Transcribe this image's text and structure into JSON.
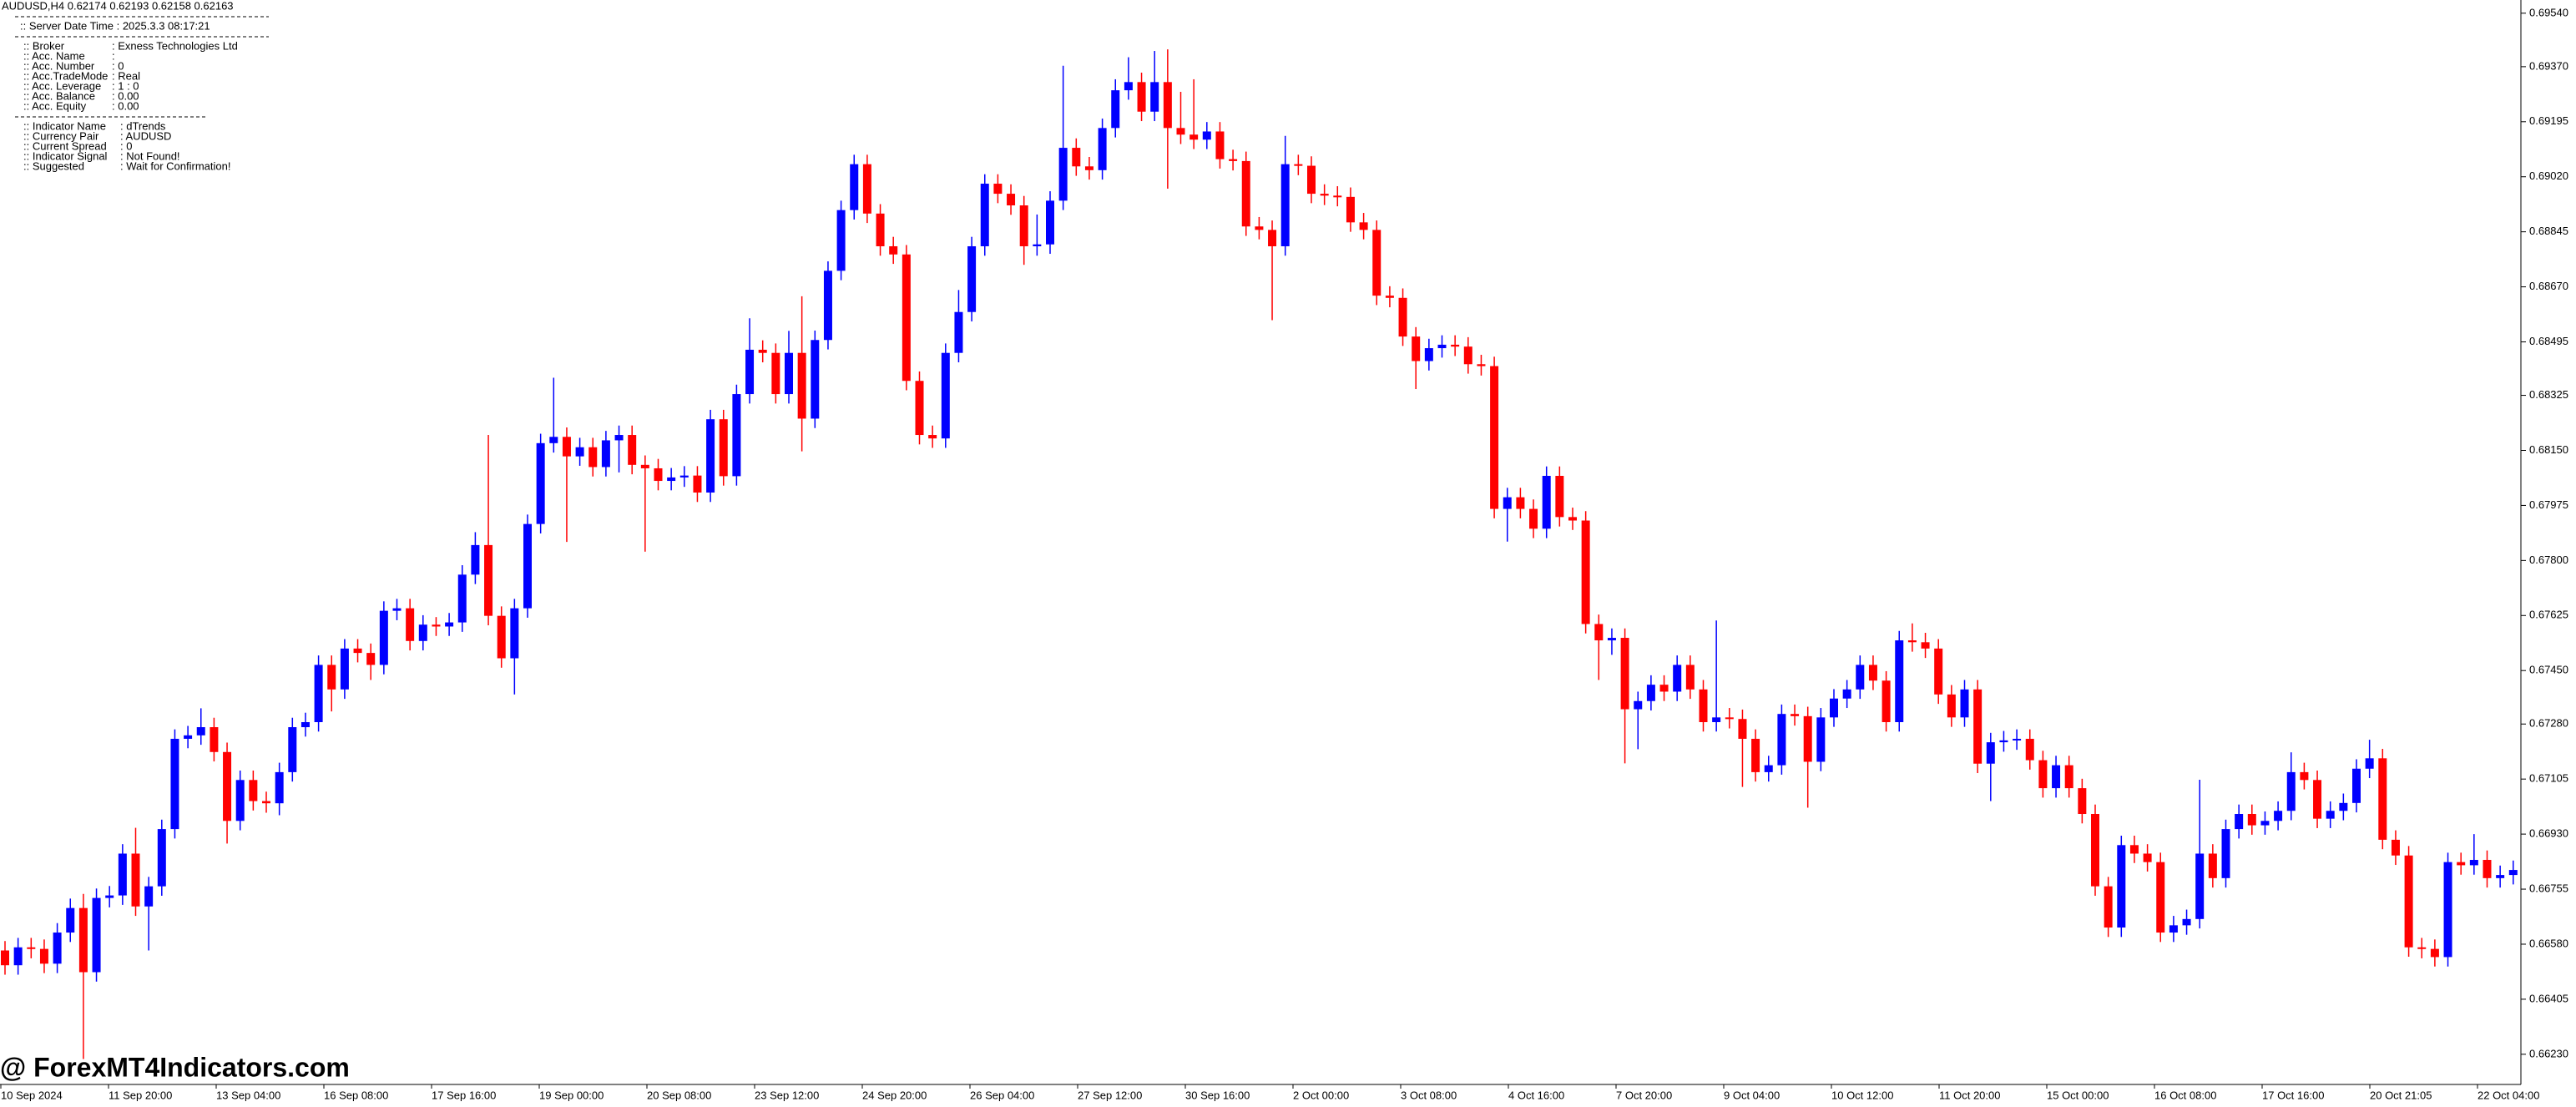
{
  "header": {
    "symbol_line": "AUDUSD,H4  0.62174 0.62193 0.62158 0.62163",
    "server_time": ":: Server Date Time : 2025.3.3   08:17:21"
  },
  "info_panel": [
    {
      "label": ":: Broker",
      "value": ": Exness Technologies Ltd"
    },
    {
      "label": ":: Acc. Name",
      "value": ":"
    },
    {
      "label": ":: Acc. Number",
      "value": ": 0"
    },
    {
      "label": ":: Acc.TradeMode",
      "value": ": Real"
    },
    {
      "label": ":: Acc. Leverage",
      "value": ": 1 : 0"
    },
    {
      "label": ":: Acc. Balance",
      "value": ": 0.00"
    },
    {
      "label": ":: Acc. Equity",
      "value": ": 0.00"
    }
  ],
  "indicator_panel": [
    {
      "label": ":: Indicator Name",
      "value": ": dTrends"
    },
    {
      "label": ":: Currency Pair",
      "value": ": AUDUSD"
    },
    {
      "label": ":: Current Spread",
      "value": ": 0"
    },
    {
      "label": ":: Indicator Signal",
      "value": ": Not Found!"
    },
    {
      "label": ":: Suggested",
      "value": ": Wait for Confirmation!"
    }
  ],
  "watermark": "@ ForexMT4Indicators.com",
  "chart_data": {
    "type": "candlestick",
    "up_color": "#0000ff",
    "down_color": "#ff0000",
    "ylim": [
      0.66134,
      0.69582
    ],
    "yticks": [
      {
        "value": 0.6954,
        "label": "0.69540"
      },
      {
        "value": 0.6937,
        "label": "0.69370"
      },
      0.69195,
      {
        "value": 0.6902,
        "label": "0.69020"
      },
      0.68845,
      {
        "value": 0.6867,
        "label": "0.68670"
      },
      0.68495,
      0.68325,
      {
        "value": 0.6815,
        "label": "0.68150"
      },
      0.67975,
      {
        "value": 0.678,
        "label": "0.67800"
      },
      0.67625,
      {
        "value": 0.6745,
        "label": "0.67450"
      },
      {
        "value": 0.6728,
        "label": "0.67280"
      },
      0.67105,
      {
        "value": 0.6693,
        "label": "0.66930"
      },
      0.66755,
      {
        "value": 0.6658,
        "label": "0.66580"
      },
      0.66405,
      {
        "value": 0.6623,
        "label": "0.66230"
      }
    ],
    "x_labels": [
      "10 Sep 2024",
      "11 Sep 20:00",
      "13 Sep 04:00",
      "16 Sep 08:00",
      "17 Sep 16:00",
      "19 Sep 00:00",
      "20 Sep 08:00",
      "23 Sep 12:00",
      "24 Sep 20:00",
      "26 Sep 04:00",
      "27 Sep 12:00",
      "30 Sep 16:00",
      "2 Oct 00:00",
      "3 Oct 08:00",
      "4 Oct 16:00",
      "7 Oct 20:00",
      "9 Oct 04:00",
      "10 Oct 12:00",
      "11 Oct 20:00",
      "15 Oct 00:00",
      "16 Oct 08:00",
      "17 Oct 16:00",
      "20 Oct 21:05",
      "22 Oct 04:00"
    ],
    "candles": [
      [
        0.6656,
        0.6659,
        0.66483,
        0.66513
      ],
      [
        0.66513,
        0.666,
        0.66483,
        0.6657
      ],
      [
        0.6657,
        0.666,
        0.66535,
        0.66565
      ],
      [
        0.66565,
        0.66595,
        0.66488,
        0.66518
      ],
      [
        0.66518,
        0.66647,
        0.66488,
        0.66617
      ],
      [
        0.66617,
        0.66725,
        0.66587,
        0.66695
      ],
      [
        0.66695,
        0.6674,
        0.66215,
        0.66491
      ],
      [
        0.66491,
        0.66757,
        0.66461,
        0.66727
      ],
      [
        0.66727,
        0.66765,
        0.66697,
        0.66735
      ],
      [
        0.66735,
        0.66898,
        0.66705,
        0.66868
      ],
      [
        0.66868,
        0.6695,
        0.6667,
        0.667
      ],
      [
        0.667,
        0.66794,
        0.6656,
        0.66764
      ],
      [
        0.66764,
        0.66976,
        0.66734,
        0.66946
      ],
      [
        0.66946,
        0.67263,
        0.66916,
        0.67233
      ],
      [
        0.67233,
        0.67274,
        0.67203,
        0.67244
      ],
      [
        0.67244,
        0.6733,
        0.67214,
        0.6727
      ],
      [
        0.6727,
        0.673,
        0.67161,
        0.67191
      ],
      [
        0.67191,
        0.67221,
        0.669,
        0.66972
      ],
      [
        0.66972,
        0.67132,
        0.66942,
        0.67102
      ],
      [
        0.67102,
        0.67132,
        0.67005,
        0.67035
      ],
      [
        0.67035,
        0.67065,
        0.66998,
        0.67028
      ],
      [
        0.67028,
        0.67157,
        0.6699,
        0.67127
      ],
      [
        0.67127,
        0.673,
        0.67097,
        0.6727
      ],
      [
        0.6727,
        0.67316,
        0.6724,
        0.67286
      ],
      [
        0.67286,
        0.67498,
        0.67256,
        0.67468
      ],
      [
        0.67468,
        0.67498,
        0.6732,
        0.6739
      ],
      [
        0.6739,
        0.6755,
        0.6736,
        0.6752
      ],
      [
        0.6752,
        0.6755,
        0.67476,
        0.67506
      ],
      [
        0.67506,
        0.67536,
        0.6742,
        0.67468
      ],
      [
        0.67468,
        0.6767,
        0.67438,
        0.6764
      ],
      [
        0.6764,
        0.67678,
        0.6761,
        0.67648
      ],
      [
        0.67648,
        0.67678,
        0.67514,
        0.67544
      ],
      [
        0.67544,
        0.67626,
        0.67514,
        0.67596
      ],
      [
        0.67596,
        0.6762,
        0.6756,
        0.6759
      ],
      [
        0.6759,
        0.67633,
        0.6756,
        0.67603
      ],
      [
        0.67603,
        0.67785,
        0.67573,
        0.67755
      ],
      [
        0.67755,
        0.6789,
        0.67725,
        0.67849
      ],
      [
        0.67849,
        0.68199,
        0.67594,
        0.67624
      ],
      [
        0.67624,
        0.67654,
        0.67459,
        0.67489
      ],
      [
        0.67489,
        0.67678,
        0.67374,
        0.67648
      ],
      [
        0.67648,
        0.67946,
        0.67618,
        0.67916
      ],
      [
        0.67916,
        0.68203,
        0.67886,
        0.68173
      ],
      [
        0.68173,
        0.68381,
        0.68143,
        0.68193
      ],
      [
        0.68193,
        0.68223,
        0.67859,
        0.68131
      ],
      [
        0.68131,
        0.6819,
        0.68101,
        0.6816
      ],
      [
        0.6816,
        0.6819,
        0.68067,
        0.68097
      ],
      [
        0.68097,
        0.68212,
        0.68067,
        0.68182
      ],
      [
        0.68182,
        0.68229,
        0.6808,
        0.68199
      ],
      [
        0.68199,
        0.68229,
        0.68074,
        0.68104
      ],
      [
        0.68104,
        0.68134,
        0.67828,
        0.68093
      ],
      [
        0.68093,
        0.68123,
        0.68023,
        0.68053
      ],
      [
        0.68053,
        0.68094,
        0.68023,
        0.68064
      ],
      [
        0.68064,
        0.681,
        0.68034,
        0.6807
      ],
      [
        0.6807,
        0.681,
        0.67986,
        0.68016
      ],
      [
        0.68016,
        0.68279,
        0.67986,
        0.68249
      ],
      [
        0.68249,
        0.68279,
        0.68038,
        0.68068
      ],
      [
        0.68068,
        0.68359,
        0.68038,
        0.68329
      ],
      [
        0.68329,
        0.6857,
        0.68299,
        0.6847
      ],
      [
        0.6847,
        0.685,
        0.6843,
        0.6846
      ],
      [
        0.6846,
        0.6849,
        0.68299,
        0.68329
      ],
      [
        0.68329,
        0.6853,
        0.68299,
        0.6846
      ],
      [
        0.6846,
        0.6864,
        0.68147,
        0.68251
      ],
      [
        0.68251,
        0.68531,
        0.68221,
        0.68501
      ],
      [
        0.68501,
        0.68751,
        0.68471,
        0.68721
      ],
      [
        0.68721,
        0.68944,
        0.68691,
        0.68914
      ],
      [
        0.68914,
        0.6909,
        0.68884,
        0.6906
      ],
      [
        0.6906,
        0.6909,
        0.68873,
        0.68903
      ],
      [
        0.68903,
        0.68933,
        0.68769,
        0.68799
      ],
      [
        0.68799,
        0.68829,
        0.68743,
        0.68773
      ],
      [
        0.68773,
        0.68803,
        0.68341,
        0.68371
      ],
      [
        0.68371,
        0.68401,
        0.68169,
        0.68199
      ],
      [
        0.68199,
        0.68229,
        0.68158,
        0.68188
      ],
      [
        0.68188,
        0.6849,
        0.68158,
        0.6846
      ],
      [
        0.6846,
        0.6866,
        0.6843,
        0.6859
      ],
      [
        0.6859,
        0.68829,
        0.6856,
        0.68799
      ],
      [
        0.68799,
        0.69028,
        0.68769,
        0.68998
      ],
      [
        0.68998,
        0.69028,
        0.68936,
        0.68966
      ],
      [
        0.68966,
        0.68996,
        0.68899,
        0.68929
      ],
      [
        0.68929,
        0.68959,
        0.6874,
        0.68799
      ],
      [
        0.68799,
        0.689,
        0.68769,
        0.68805
      ],
      [
        0.68805,
        0.68974,
        0.68775,
        0.68944
      ],
      [
        0.68944,
        0.69373,
        0.68914,
        0.69112
      ],
      [
        0.69112,
        0.69142,
        0.69023,
        0.69053
      ],
      [
        0.69053,
        0.69083,
        0.69011,
        0.69041
      ],
      [
        0.69041,
        0.69205,
        0.69011,
        0.69175
      ],
      [
        0.69175,
        0.6933,
        0.69145,
        0.69295
      ],
      [
        0.69295,
        0.694,
        0.69265,
        0.69321
      ],
      [
        0.69321,
        0.69351,
        0.69197,
        0.69227
      ],
      [
        0.69227,
        0.6942,
        0.69197,
        0.69321
      ],
      [
        0.69321,
        0.69425,
        0.68982,
        0.69175
      ],
      [
        0.69175,
        0.6929,
        0.69124,
        0.69154
      ],
      [
        0.69154,
        0.6933,
        0.69108,
        0.69138
      ],
      [
        0.69138,
        0.69194,
        0.69108,
        0.69164
      ],
      [
        0.69164,
        0.69194,
        0.69046,
        0.69076
      ],
      [
        0.69076,
        0.69106,
        0.6904,
        0.6907
      ],
      [
        0.6907,
        0.691,
        0.68832,
        0.68862
      ],
      [
        0.68862,
        0.68892,
        0.68821,
        0.68851
      ],
      [
        0.68851,
        0.68881,
        0.68564,
        0.68799
      ],
      [
        0.68799,
        0.6915,
        0.68769,
        0.6906
      ],
      [
        0.6906,
        0.6909,
        0.69025,
        0.69055
      ],
      [
        0.69055,
        0.69085,
        0.68936,
        0.68966
      ],
      [
        0.68966,
        0.68996,
        0.6893,
        0.6896
      ],
      [
        0.6896,
        0.6899,
        0.68926,
        0.68956
      ],
      [
        0.68956,
        0.68986,
        0.68845,
        0.68875
      ],
      [
        0.68875,
        0.68905,
        0.68821,
        0.68851
      ],
      [
        0.68851,
        0.68881,
        0.68612,
        0.68642
      ],
      [
        0.68642,
        0.68672,
        0.68605,
        0.68635
      ],
      [
        0.68635,
        0.68665,
        0.68482,
        0.68512
      ],
      [
        0.68512,
        0.68542,
        0.68345,
        0.68434
      ],
      [
        0.68434,
        0.68505,
        0.68404,
        0.68475
      ],
      [
        0.68475,
        0.68516,
        0.68445,
        0.68486
      ],
      [
        0.68486,
        0.68516,
        0.6845,
        0.6848
      ],
      [
        0.6848,
        0.6851,
        0.68394,
        0.68424
      ],
      [
        0.68424,
        0.68454,
        0.68388,
        0.68418
      ],
      [
        0.68418,
        0.68448,
        0.67934,
        0.67964
      ],
      [
        0.67964,
        0.68031,
        0.6786,
        0.68001
      ],
      [
        0.68001,
        0.68031,
        0.67934,
        0.67964
      ],
      [
        0.67964,
        0.67994,
        0.67871,
        0.67901
      ],
      [
        0.67901,
        0.68099,
        0.67871,
        0.68069
      ],
      [
        0.68069,
        0.68099,
        0.67908,
        0.67938
      ],
      [
        0.67938,
        0.67968,
        0.67897,
        0.67927
      ],
      [
        0.67927,
        0.67957,
        0.67568,
        0.67598
      ],
      [
        0.67598,
        0.67628,
        0.6742,
        0.67546
      ],
      [
        0.67546,
        0.67584,
        0.675,
        0.67554
      ],
      [
        0.67554,
        0.67584,
        0.67155,
        0.67327
      ],
      [
        0.67327,
        0.67383,
        0.672,
        0.67353
      ],
      [
        0.67353,
        0.67435,
        0.67323,
        0.67405
      ],
      [
        0.67405,
        0.67435,
        0.67353,
        0.67383
      ],
      [
        0.67383,
        0.67498,
        0.67353,
        0.67468
      ],
      [
        0.67468,
        0.67498,
        0.6736,
        0.6739
      ],
      [
        0.6739,
        0.6742,
        0.67256,
        0.67286
      ],
      [
        0.67286,
        0.67609,
        0.67256,
        0.67301
      ],
      [
        0.67301,
        0.67331,
        0.67266,
        0.67296
      ],
      [
        0.67296,
        0.67326,
        0.6708,
        0.67233
      ],
      [
        0.67233,
        0.67263,
        0.67097,
        0.67127
      ],
      [
        0.67127,
        0.67179,
        0.67097,
        0.67149
      ],
      [
        0.67149,
        0.67342,
        0.67119,
        0.67312
      ],
      [
        0.67312,
        0.67342,
        0.67275,
        0.67305
      ],
      [
        0.67305,
        0.67335,
        0.67014,
        0.6716
      ],
      [
        0.6716,
        0.67331,
        0.6713,
        0.67301
      ],
      [
        0.67301,
        0.67391,
        0.67271,
        0.67361
      ],
      [
        0.67361,
        0.6742,
        0.67331,
        0.6739
      ],
      [
        0.6739,
        0.67498,
        0.6736,
        0.67468
      ],
      [
        0.67468,
        0.67498,
        0.67388,
        0.67418
      ],
      [
        0.67418,
        0.67448,
        0.67256,
        0.67286
      ],
      [
        0.67286,
        0.67576,
        0.67256,
        0.67546
      ],
      [
        0.67546,
        0.676,
        0.6751,
        0.6754
      ],
      [
        0.6754,
        0.6757,
        0.6749,
        0.6752
      ],
      [
        0.6752,
        0.6755,
        0.67344,
        0.67374
      ],
      [
        0.67374,
        0.67404,
        0.67271,
        0.67301
      ],
      [
        0.67301,
        0.6742,
        0.67271,
        0.6739
      ],
      [
        0.6739,
        0.6742,
        0.67124,
        0.67154
      ],
      [
        0.67154,
        0.67252,
        0.67035,
        0.67222
      ],
      [
        0.67222,
        0.67258,
        0.67192,
        0.67228
      ],
      [
        0.67228,
        0.67263,
        0.67198,
        0.67233
      ],
      [
        0.67233,
        0.67263,
        0.67135,
        0.67165
      ],
      [
        0.67165,
        0.67195,
        0.67046,
        0.67076
      ],
      [
        0.67076,
        0.67179,
        0.67046,
        0.67149
      ],
      [
        0.67149,
        0.67179,
        0.67046,
        0.67076
      ],
      [
        0.67076,
        0.67106,
        0.66964,
        0.66994
      ],
      [
        0.66994,
        0.67024,
        0.66734,
        0.66764
      ],
      [
        0.66764,
        0.66794,
        0.66603,
        0.66633
      ],
      [
        0.66633,
        0.66925,
        0.66603,
        0.66895
      ],
      [
        0.66895,
        0.66925,
        0.66838,
        0.66868
      ],
      [
        0.66868,
        0.66898,
        0.66811,
        0.66841
      ],
      [
        0.66841,
        0.66871,
        0.66587,
        0.66617
      ],
      [
        0.66617,
        0.6667,
        0.66587,
        0.6664
      ],
      [
        0.6664,
        0.6669,
        0.6661,
        0.6666
      ],
      [
        0.6666,
        0.67103,
        0.6663,
        0.66868
      ],
      [
        0.66868,
        0.66898,
        0.6676,
        0.6679
      ],
      [
        0.6679,
        0.66976,
        0.6676,
        0.66946
      ],
      [
        0.66946,
        0.67024,
        0.66916,
        0.66994
      ],
      [
        0.66994,
        0.67024,
        0.66928,
        0.66958
      ],
      [
        0.66958,
        0.67002,
        0.66928,
        0.66972
      ],
      [
        0.66972,
        0.67034,
        0.66942,
        0.67004
      ],
      [
        0.67004,
        0.6719,
        0.66974,
        0.67127
      ],
      [
        0.67127,
        0.67157,
        0.67072,
        0.67102
      ],
      [
        0.67102,
        0.67132,
        0.66949,
        0.66979
      ],
      [
        0.66979,
        0.67034,
        0.66949,
        0.67004
      ],
      [
        0.67004,
        0.67059,
        0.66974,
        0.67029
      ],
      [
        0.67029,
        0.67168,
        0.66999,
        0.67138
      ],
      [
        0.67138,
        0.6723,
        0.67108,
        0.67171
      ],
      [
        0.67171,
        0.67201,
        0.66882,
        0.66912
      ],
      [
        0.66912,
        0.66942,
        0.66832,
        0.66862
      ],
      [
        0.66862,
        0.66892,
        0.6654,
        0.6657
      ],
      [
        0.6657,
        0.666,
        0.66535,
        0.66565
      ],
      [
        0.66565,
        0.66595,
        0.66509,
        0.66539
      ],
      [
        0.66539,
        0.66871,
        0.66509,
        0.66841
      ],
      [
        0.66841,
        0.66871,
        0.66801,
        0.66831
      ],
      [
        0.66831,
        0.6693,
        0.66801,
        0.66848
      ],
      [
        0.66848,
        0.66878,
        0.6676,
        0.6679
      ],
      [
        0.6679,
        0.6683,
        0.6676,
        0.668
      ],
      [
        0.668,
        0.66846,
        0.6677,
        0.66816
      ]
    ]
  }
}
